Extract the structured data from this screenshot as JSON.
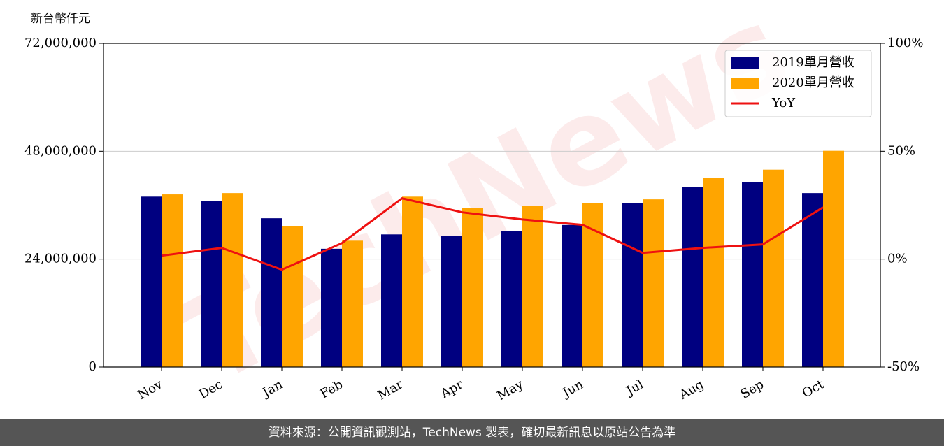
{
  "chart_data": {
    "type": "bar",
    "y_label": "新台幣仟元",
    "categories": [
      "Nov",
      "Dec",
      "Jan",
      "Feb",
      "Mar",
      "Apr",
      "May",
      "Jun",
      "Jul",
      "Aug",
      "Sep",
      "Oct"
    ],
    "series": [
      {
        "name": "2019單月營收",
        "color": "#000080",
        "values": [
          37900000,
          37000000,
          33100000,
          26300000,
          29500000,
          29100000,
          30200000,
          31600000,
          36400000,
          40000000,
          41100000,
          38700000
        ]
      },
      {
        "name": "2020單月營收",
        "color": "#ffa500",
        "values": [
          38400000,
          38700000,
          31300000,
          28100000,
          37900000,
          35300000,
          35800000,
          36400000,
          37300000,
          42000000,
          43900000,
          48100000
        ]
      },
      {
        "name": "YoY",
        "type": "line",
        "axis": "y2",
        "color": "#ee1111",
        "values": [
          1.6,
          5.2,
          -4.9,
          7.4,
          28.2,
          21.7,
          18.4,
          15.9,
          2.9,
          5.2,
          6.8,
          24
        ]
      }
    ],
    "ylim": [
      0,
      72000000
    ],
    "yticks": [
      0,
      {
        "value": 24000000,
        "label": "24,000,000"
      },
      {
        "value": 48000000,
        "label": "48,000,000"
      },
      {
        "value": 72000000,
        "label": "72,000,000"
      }
    ],
    "y2lim": [
      -50,
      100
    ],
    "y2ticks": [
      {
        "value": -50,
        "label": "-50%"
      },
      {
        "value": 0,
        "label": "0%"
      },
      {
        "value": 50,
        "label": "50%"
      },
      {
        "value": 100,
        "label": "100%"
      }
    ],
    "grid": true,
    "legend": "upper right",
    "watermark": "TechNews",
    "footer": "資料來源：公開資訊觀測站，TechNews 製表，確切最新訊息以原站公告為準"
  }
}
